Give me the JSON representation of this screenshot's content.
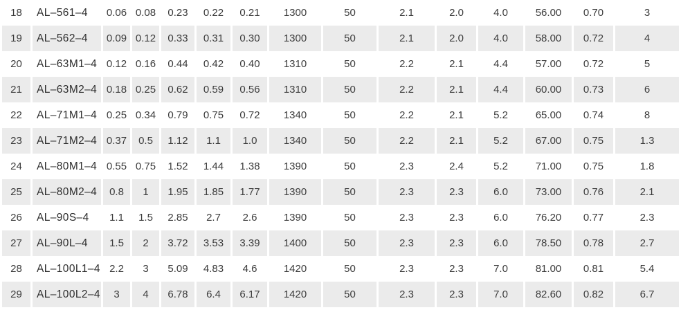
{
  "colors": {
    "background": "#ffffff",
    "stripe": "#ebebeb",
    "text": "#3c3c3c"
  },
  "table": {
    "rows": [
      {
        "cells": [
          "18",
          "AL–561–4",
          "0.06",
          "0.08",
          "0.23",
          "0.22",
          "0.21",
          "1300",
          "50",
          "2.1",
          "2.0",
          "4.0",
          "56.00",
          "0.70",
          "3"
        ]
      },
      {
        "cells": [
          "19",
          "AL–562–4",
          "0.09",
          "0.12",
          "0.33",
          "0.31",
          "0.30",
          "1300",
          "50",
          "2.1",
          "2.0",
          "4.0",
          "58.00",
          "0.72",
          "4"
        ]
      },
      {
        "cells": [
          "20",
          "AL–63M1–4",
          "0.12",
          "0.16",
          "0.44",
          "0.42",
          "0.40",
          "1310",
          "50",
          "2.2",
          "2.1",
          "4.4",
          "57.00",
          "0.72",
          "5"
        ]
      },
      {
        "cells": [
          "21",
          "AL–63M2–4",
          "0.18",
          "0.25",
          "0.62",
          "0.59",
          "0.56",
          "1310",
          "50",
          "2.2",
          "2.1",
          "4.4",
          "60.00",
          "0.73",
          "6"
        ]
      },
      {
        "cells": [
          "22",
          "AL–71M1–4",
          "0.25",
          "0.34",
          "0.79",
          "0.75",
          "0.72",
          "1340",
          "50",
          "2.2",
          "2.1",
          "5.2",
          "65.00",
          "0.74",
          "8"
        ]
      },
      {
        "cells": [
          "23",
          "AL–71M2–4",
          "0.37",
          "0.5",
          "1.12",
          "1.1",
          "1.0",
          "1340",
          "50",
          "2.2",
          "2.1",
          "5.2",
          "67.00",
          "0.75",
          "1.3"
        ]
      },
      {
        "cells": [
          "24",
          "AL–80M1–4",
          "0.55",
          "0.75",
          "1.52",
          "1.44",
          "1.38",
          "1390",
          "50",
          "2.3",
          "2.4",
          "5.2",
          "71.00",
          "0.75",
          "1.8"
        ]
      },
      {
        "cells": [
          "25",
          "AL–80M2–4",
          "0.8",
          "1",
          "1.95",
          "1.85",
          "1.77",
          "1390",
          "50",
          "2.3",
          "2.3",
          "6.0",
          "73.00",
          "0.76",
          "2.1"
        ]
      },
      {
        "cells": [
          "26",
          "AL–90S–4",
          "1.1",
          "1.5",
          "2.85",
          "2.7",
          "2.6",
          "1390",
          "50",
          "2.3",
          "2.3",
          "6.0",
          "76.20",
          "0.77",
          "2.3"
        ]
      },
      {
        "cells": [
          "27",
          "AL–90L–4",
          "1.5",
          "2",
          "3.72",
          "3.53",
          "3.39",
          "1400",
          "50",
          "2.3",
          "2.3",
          "6.0",
          "78.50",
          "0.78",
          "2.7"
        ]
      },
      {
        "cells": [
          "28",
          "AL–100L1–4",
          "2.2",
          "3",
          "5.09",
          "4.83",
          "4.6",
          "1420",
          "50",
          "2.3",
          "2.3",
          "7.0",
          "81.00",
          "0.81",
          "5.4"
        ]
      },
      {
        "cells": [
          "29",
          "AL–100L2–4",
          "3",
          "4",
          "6.78",
          "6.4",
          "6.17",
          "1420",
          "50",
          "2.3",
          "2.3",
          "7.0",
          "82.60",
          "0.82",
          "6.7"
        ]
      }
    ]
  }
}
